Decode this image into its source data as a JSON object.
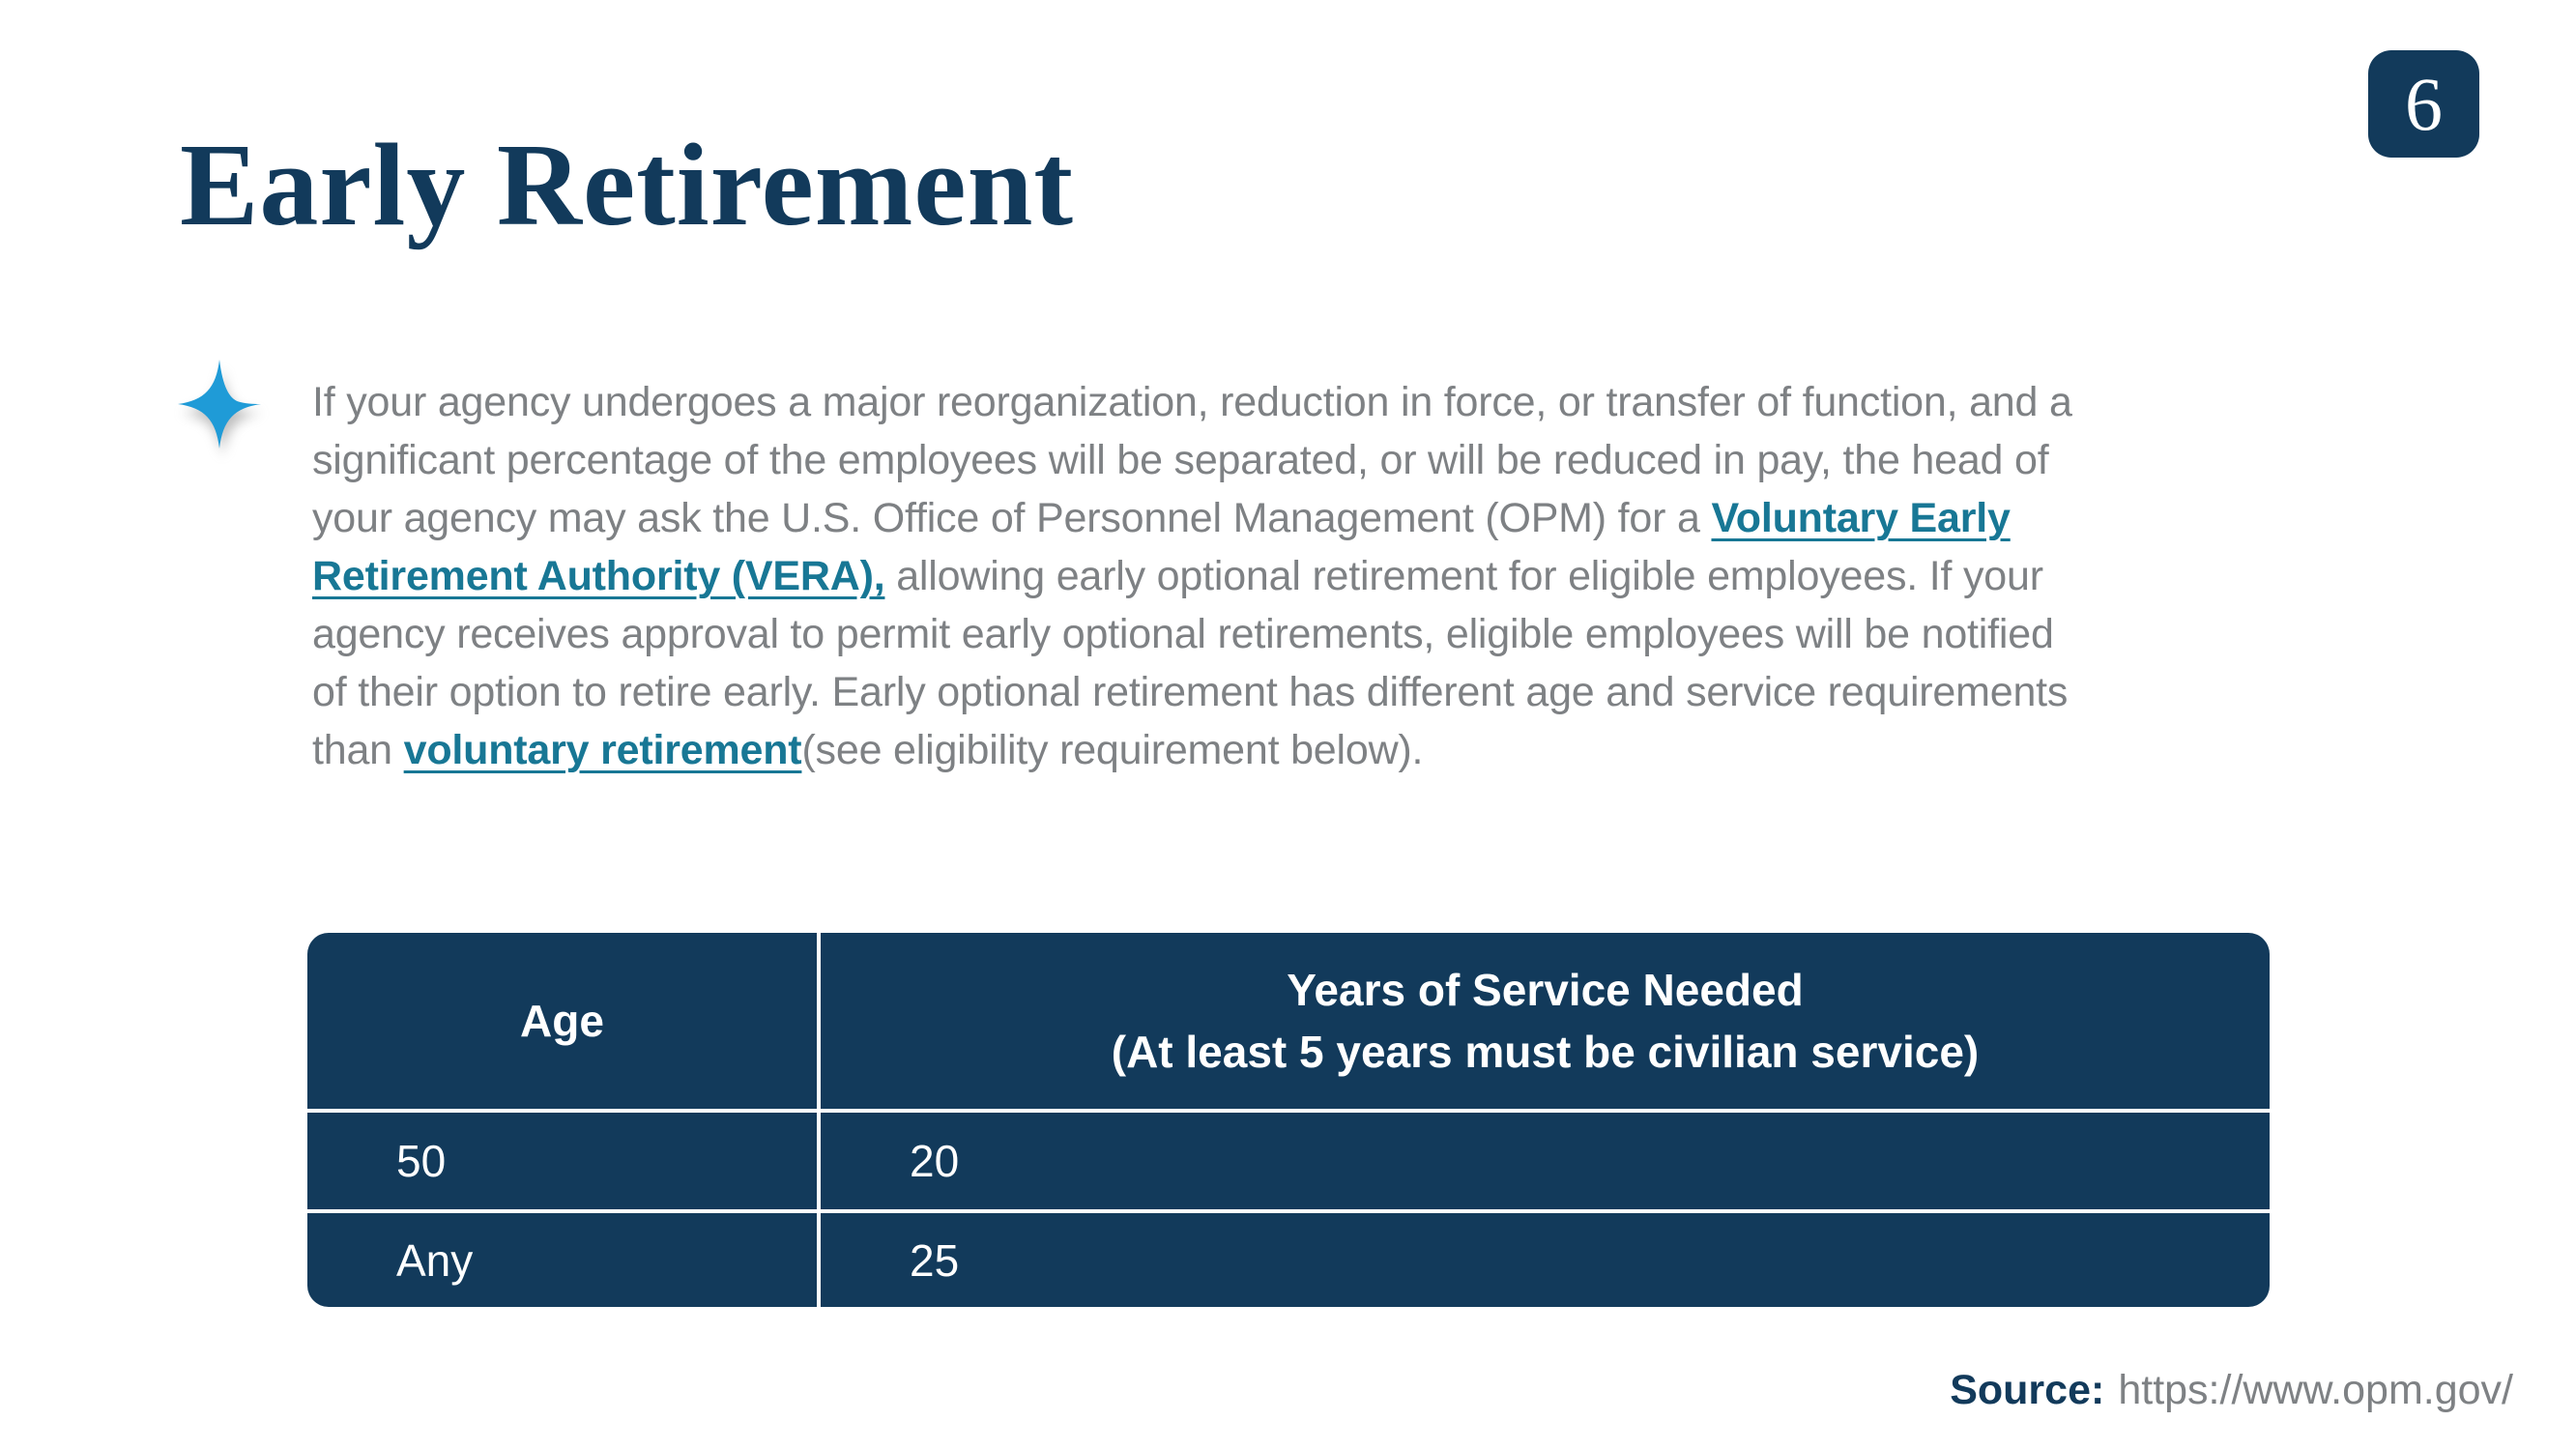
{
  "page": {
    "number": "6"
  },
  "title": "Early Retirement",
  "colors": {
    "navy": "#123a5b",
    "star_blue": "#1f9bd7",
    "link_teal": "#187795",
    "body_gray": "#7e8184"
  },
  "icons": {
    "bullet": "four-point-star-icon"
  },
  "paragraph": {
    "lines": [
      [
        {
          "t": "If your agency undergoes a major reorganization, reduction in force, or transfer of function, and a"
        }
      ],
      [
        {
          "t": "significant percentage of the employees will be separated, or will be reduced in pay, the head of"
        }
      ],
      [
        {
          "t": "your agency may ask the U.S. Office of Personnel Management (OPM) for a "
        },
        {
          "t": "Voluntary Early",
          "link": true,
          "name": "vera-link-part-1"
        }
      ],
      [
        {
          "t": "Retirement Authority (VERA),",
          "link": true,
          "name": "vera-link-part-2"
        },
        {
          "t": " allowing early optional retirement for eligible employees. If your"
        }
      ],
      [
        {
          "t": "agency receives approval to permit early optional retirements, eligible employees will be notified"
        }
      ],
      [
        {
          "t": "of their option to retire early. Early optional retirement has different age and service requirements"
        }
      ],
      [
        {
          "t": "than "
        },
        {
          "t": "voluntary retirement",
          "link": true,
          "name": "voluntary-retirement-link"
        },
        {
          "t": "(see eligibility requirement below)."
        }
      ]
    ]
  },
  "table": {
    "header": [
      {
        "lines": [
          "Age"
        ]
      },
      {
        "lines": [
          "Years of Service Needed",
          "(At least 5 years must be civilian service)"
        ]
      }
    ],
    "rows": [
      [
        "50",
        "20"
      ],
      [
        "Any",
        "25"
      ]
    ]
  },
  "source": {
    "label": "Source:",
    "url": "https://www.opm.gov/"
  }
}
